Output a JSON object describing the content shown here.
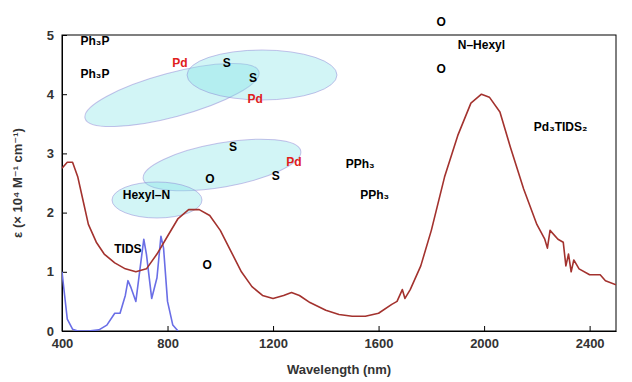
{
  "chart_data": {
    "type": "line",
    "x_label": "Wavelength (nm)",
    "y_label": "ε (× 10⁴ M⁻¹ cm⁻¹)",
    "xlim": [
      400,
      2500
    ],
    "ylim": [
      0,
      5
    ],
    "xticks": [
      400,
      800,
      1200,
      1600,
      2000,
      2400
    ],
    "yticks": [
      0,
      1,
      2,
      3,
      4,
      5
    ],
    "grid": false,
    "series": [
      {
        "name": "TIDS",
        "color": "#6a6ee6",
        "x": [
          400,
          410,
          420,
          440,
          460,
          500,
          540,
          570,
          600,
          620,
          640,
          650,
          660,
          680,
          700,
          710,
          720,
          740,
          760,
          775,
          785,
          800,
          820,
          840
        ],
        "values": [
          1.0,
          0.6,
          0.2,
          0.03,
          0,
          0,
          0.02,
          0.1,
          0.3,
          0.3,
          0.6,
          0.85,
          0.75,
          0.5,
          1.2,
          1.55,
          1.3,
          0.55,
          0.9,
          1.6,
          1.4,
          0.5,
          0.1,
          0
        ]
      },
      {
        "name": "Pd₃TIDS₂",
        "color": "#a3322e",
        "x": [
          400,
          420,
          440,
          460,
          480,
          500,
          530,
          560,
          600,
          640,
          680,
          720,
          760,
          800,
          840,
          880,
          920,
          960,
          1000,
          1040,
          1080,
          1120,
          1160,
          1200,
          1240,
          1270,
          1300,
          1340,
          1400,
          1450,
          1500,
          1550,
          1600,
          1650,
          1670,
          1690,
          1700,
          1720,
          1760,
          1800,
          1850,
          1900,
          1950,
          1990,
          2020,
          2060,
          2100,
          2150,
          2200,
          2230,
          2240,
          2250,
          2280,
          2300,
          2310,
          2320,
          2330,
          2340,
          2360,
          2400,
          2440,
          2460,
          2500
        ],
        "values": [
          2.75,
          2.85,
          2.85,
          2.6,
          2.2,
          1.8,
          1.5,
          1.3,
          1.15,
          1.05,
          1.0,
          1.05,
          1.3,
          1.6,
          1.9,
          2.05,
          2.05,
          1.95,
          1.7,
          1.35,
          1.0,
          0.75,
          0.6,
          0.55,
          0.6,
          0.65,
          0.6,
          0.48,
          0.35,
          0.28,
          0.25,
          0.25,
          0.3,
          0.45,
          0.5,
          0.7,
          0.55,
          0.7,
          1.1,
          1.7,
          2.6,
          3.3,
          3.85,
          4.0,
          3.95,
          3.7,
          3.1,
          2.4,
          1.8,
          1.55,
          1.4,
          1.7,
          1.55,
          1.5,
          1.1,
          1.3,
          1.0,
          1.2,
          1.05,
          0.95,
          0.95,
          0.85,
          0.78
        ]
      }
    ],
    "annotations": [
      {
        "text": "TIDS",
        "x": 650,
        "y": 1.37,
        "color": "#000000"
      },
      {
        "text": "Pd₃TIDS₂",
        "x": 2290,
        "y": 3.43,
        "color": "#000000"
      },
      {
        "text": "Ph₃P",
        "x": 525,
        "y": 4.88,
        "color": "#000000"
      },
      {
        "text": "Ph₃P",
        "x": 525,
        "y": 4.32,
        "color": "#000000"
      },
      {
        "text": "Pd",
        "x": 847,
        "y": 4.51,
        "color": "#e0201c"
      },
      {
        "text": "Pd",
        "x": 1132,
        "y": 3.9,
        "color": "#e0201c"
      },
      {
        "text": "Pd",
        "x": 1279,
        "y": 2.84,
        "color": "#e0201c"
      },
      {
        "text": "S",
        "x": 1025,
        "y": 4.51,
        "color": "#000000"
      },
      {
        "text": "S",
        "x": 1124,
        "y": 4.26,
        "color": "#000000"
      },
      {
        "text": "S",
        "x": 1048,
        "y": 3.09,
        "color": "#000000"
      },
      {
        "text": "S",
        "x": 1210,
        "y": 2.6,
        "color": "#000000"
      },
      {
        "text": "O",
        "x": 1837,
        "y": 5.2,
        "color": "#000000"
      },
      {
        "text": "O",
        "x": 1837,
        "y": 4.41,
        "color": "#000000"
      },
      {
        "text": "N–Hexyl",
        "x": 1990,
        "y": 4.81,
        "color": "#000000"
      },
      {
        "text": "Hexyl–N",
        "x": 720,
        "y": 2.28,
        "color": "#000000"
      },
      {
        "text": "O",
        "x": 961,
        "y": 2.55,
        "color": "#000000"
      },
      {
        "text": "O",
        "x": 950,
        "y": 1.1,
        "color": "#000000"
      },
      {
        "text": "PPh₃",
        "x": 1530,
        "y": 2.8,
        "color": "#000000"
      },
      {
        "text": "PPh₃",
        "x": 1585,
        "y": 2.28,
        "color": "#000000"
      }
    ]
  }
}
